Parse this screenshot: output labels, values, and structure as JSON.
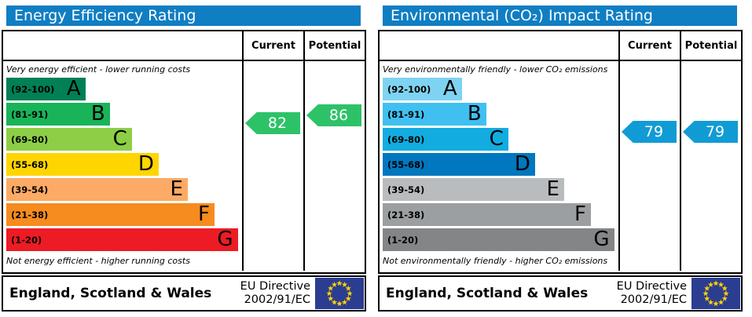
{
  "colors": {
    "title_bar": "#107ec3",
    "border": "#000000",
    "flag_blue": "#2b3d90",
    "flag_star": "#ffd200",
    "arrow_text": "#ffffff"
  },
  "panels": [
    {
      "id": "energy-efficiency",
      "title": "Energy Efficiency Rating",
      "columns": {
        "current": "Current",
        "potential": "Potential"
      },
      "top_note": "Very energy efficient - lower running costs",
      "bottom_note": "Not energy efficient - higher running costs",
      "bands": [
        {
          "letter": "A",
          "range_label": "(92-100)",
          "lo": 92,
          "hi": 100,
          "color": "#008054",
          "width_pct": 34
        },
        {
          "letter": "B",
          "range_label": "(81-91)",
          "lo": 81,
          "hi": 91,
          "color": "#19b459",
          "width_pct": 44.5
        },
        {
          "letter": "C",
          "range_label": "(69-80)",
          "lo": 69,
          "hi": 80,
          "color": "#8dce46",
          "width_pct": 54
        },
        {
          "letter": "D",
          "range_label": "(55-68)",
          "lo": 55,
          "hi": 68,
          "color": "#ffd500",
          "width_pct": 65.5
        },
        {
          "letter": "E",
          "range_label": "(39-54)",
          "lo": 39,
          "hi": 54,
          "color": "#fcaa65",
          "width_pct": 78
        },
        {
          "letter": "F",
          "range_label": "(21-38)",
          "lo": 21,
          "hi": 38,
          "color": "#f68b1f",
          "width_pct": 89.5
        },
        {
          "letter": "G",
          "range_label": "(1-20)",
          "lo": 1,
          "hi": 20,
          "color": "#ed1b24",
          "width_pct": 99.5
        }
      ],
      "current": {
        "value": 82,
        "color": "#2ec268"
      },
      "potential": {
        "value": 86,
        "color": "#2ec268"
      },
      "footer": {
        "region": "England, Scotland & Wales",
        "directive_line1": "EU Directive",
        "directive_line2": "2002/91/EC"
      }
    },
    {
      "id": "environmental-impact",
      "title": "Environmental (CO₂) Impact Rating",
      "columns": {
        "current": "Current",
        "potential": "Potential"
      },
      "top_note": "Very environmentally friendly - lower CO₂ emissions",
      "bottom_note": "Not environmentally friendly - higher CO₂ emissions",
      "bands": [
        {
          "letter": "A",
          "range_label": "(92-100)",
          "lo": 92,
          "hi": 100,
          "color": "#7fd3f2",
          "width_pct": 34
        },
        {
          "letter": "B",
          "range_label": "(81-91)",
          "lo": 81,
          "hi": 91,
          "color": "#3fc0f0",
          "width_pct": 44.5
        },
        {
          "letter": "C",
          "range_label": "(69-80)",
          "lo": 69,
          "hi": 80,
          "color": "#13ace0",
          "width_pct": 54
        },
        {
          "letter": "D",
          "range_label": "(55-68)",
          "lo": 55,
          "hi": 68,
          "color": "#0077be",
          "width_pct": 65.5
        },
        {
          "letter": "E",
          "range_label": "(39-54)",
          "lo": 39,
          "hi": 54,
          "color": "#b9bcbe",
          "width_pct": 78
        },
        {
          "letter": "F",
          "range_label": "(21-38)",
          "lo": 21,
          "hi": 38,
          "color": "#9c9fa1",
          "width_pct": 89.5
        },
        {
          "letter": "G",
          "range_label": "(1-20)",
          "lo": 1,
          "hi": 20,
          "color": "#838587",
          "width_pct": 99.5
        }
      ],
      "current": {
        "value": 79,
        "color": "#119bd5"
      },
      "potential": {
        "value": 79,
        "color": "#119bd5"
      },
      "footer": {
        "region": "England, Scotland & Wales",
        "directive_line1": "EU Directive",
        "directive_line2": "2002/91/EC"
      }
    }
  ],
  "chart_data": [
    {
      "type": "bar",
      "title": "Energy Efficiency Rating",
      "categories": [
        "A (92-100)",
        "B (81-91)",
        "C (69-80)",
        "D (55-68)",
        "E (39-54)",
        "F (21-38)",
        "G (1-20)"
      ],
      "scale": [
        1,
        100
      ],
      "current": 82,
      "potential": 86,
      "current_band": "B",
      "potential_band": "B",
      "top_annotation": "Very energy efficient - lower running costs",
      "bottom_annotation": "Not energy efficient - higher running costs"
    },
    {
      "type": "bar",
      "title": "Environmental (CO₂) Impact Rating",
      "categories": [
        "A (92-100)",
        "B (81-91)",
        "C (69-80)",
        "D (55-68)",
        "E (39-54)",
        "F (21-38)",
        "G (1-20)"
      ],
      "scale": [
        1,
        100
      ],
      "current": 79,
      "potential": 79,
      "current_band": "C",
      "potential_band": "C",
      "top_annotation": "Very environmentally friendly - lower CO₂ emissions",
      "bottom_annotation": "Not environmentally friendly - higher CO₂ emissions"
    }
  ]
}
